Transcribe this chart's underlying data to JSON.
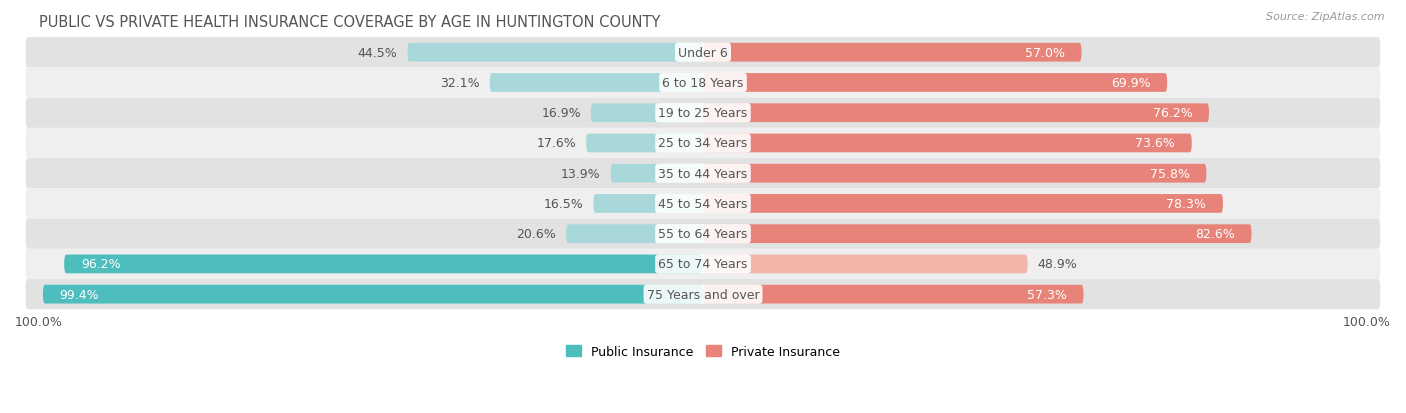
{
  "title": "PUBLIC VS PRIVATE HEALTH INSURANCE COVERAGE BY AGE IN HUNTINGTON COUNTY",
  "source": "Source: ZipAtlas.com",
  "categories": [
    "Under 6",
    "6 to 18 Years",
    "19 to 25 Years",
    "25 to 34 Years",
    "35 to 44 Years",
    "45 to 54 Years",
    "55 to 64 Years",
    "65 to 74 Years",
    "75 Years and over"
  ],
  "public_values": [
    44.5,
    32.1,
    16.9,
    17.6,
    13.9,
    16.5,
    20.6,
    96.2,
    99.4
  ],
  "private_values": [
    57.0,
    69.9,
    76.2,
    73.6,
    75.8,
    78.3,
    82.6,
    48.9,
    57.3
  ],
  "public_color": "#4dbdbe",
  "private_color": "#e8837a",
  "public_color_light": "#a8d8da",
  "private_color_light": "#f2b5aa",
  "row_bg_color_dark": "#e2e2e2",
  "row_bg_color_light": "#efefef",
  "text_color_white": "#ffffff",
  "text_color_dark": "#555555",
  "title_color": "#555555",
  "label_fontsize": 9,
  "title_fontsize": 10.5,
  "bar_height": 0.62,
  "figsize": [
    14.06,
    4.14
  ],
  "xlim": 100
}
